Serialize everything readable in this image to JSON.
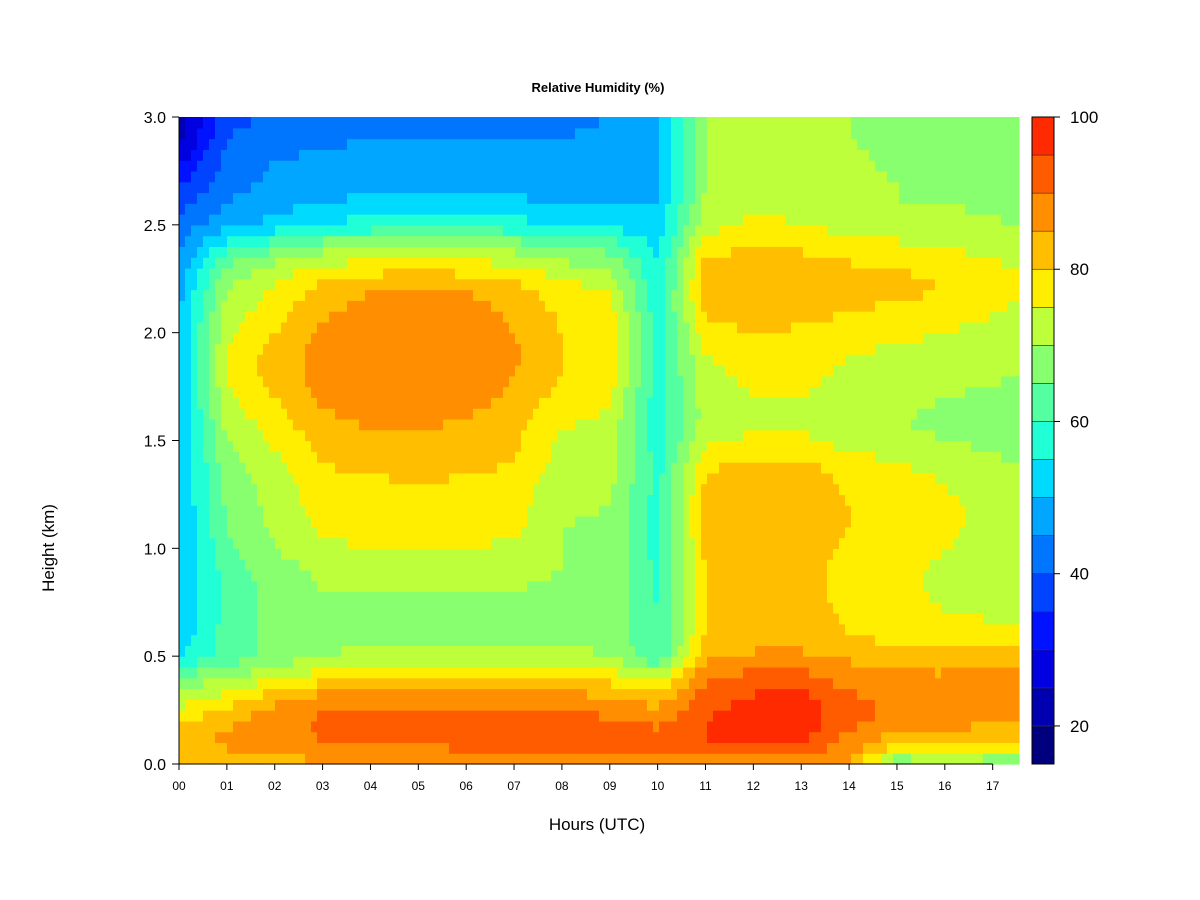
{
  "chart_data": {
    "type": "heatmap",
    "title": "Relative Humidity (%)",
    "xlabel": "Hours (UTC)",
    "ylabel": "Height (km)",
    "xlim": [
      0,
      17.55
    ],
    "ylim": [
      0,
      3.0
    ],
    "x_ticks": [
      "00",
      "01",
      "02",
      "03",
      "04",
      "05",
      "06",
      "07",
      "08",
      "09",
      "10",
      "11",
      "12",
      "13",
      "14",
      "15",
      "16",
      "17"
    ],
    "y_ticks": [
      "0.0",
      "0.5",
      "1.0",
      "1.5",
      "2.0",
      "2.5",
      "3.0"
    ],
    "colorbar": {
      "min": 15,
      "max": 100,
      "step": 5,
      "tick_labels": [
        "20",
        "40",
        "60",
        "80",
        "100"
      ],
      "colors": [
        "#00007f",
        "#0000b0",
        "#0000e1",
        "#0012ff",
        "#0044ff",
        "#0076ff",
        "#00a6ff",
        "#00daff",
        "#20ffd5",
        "#54ffa2",
        "#88ff6e",
        "#bcff3a",
        "#ffee00",
        "#ffbf00",
        "#ff8e00",
        "#ff5c00",
        "#ff2a00",
        "#d90000",
        "#8b0000"
      ]
    },
    "x": [
      0,
      1,
      2,
      3,
      4,
      5,
      6,
      7,
      8,
      9,
      10,
      11,
      12,
      13,
      14,
      15,
      16,
      17.5
    ],
    "y": [
      0.0,
      0.1,
      0.2,
      0.3,
      0.4,
      0.5,
      0.6,
      0.7,
      0.8,
      0.9,
      1.0,
      1.1,
      1.2,
      1.3,
      1.4,
      1.5,
      1.6,
      1.7,
      1.8,
      1.9,
      2.0,
      2.1,
      2.2,
      2.3,
      2.4,
      2.5,
      2.6,
      2.7,
      2.8,
      2.9,
      3.0
    ],
    "values": [
      [
        82,
        82,
        83,
        84,
        85,
        85,
        85,
        85,
        85,
        85,
        85,
        86,
        86,
        86,
        85,
        64,
        72,
        62
      ],
      [
        84,
        86,
        88,
        90,
        91,
        91,
        92,
        92,
        93,
        93,
        92,
        95,
        97,
        95,
        88,
        82,
        80,
        80
      ],
      [
        80,
        84,
        88,
        91,
        91,
        91,
        92,
        92,
        92,
        91,
        89,
        95,
        98,
        98,
        92,
        88,
        87,
        86
      ],
      [
        72,
        78,
        84,
        88,
        88,
        88,
        88,
        88,
        88,
        86,
        83,
        93,
        96,
        97,
        91,
        89,
        88,
        88
      ],
      [
        66,
        70,
        74,
        78,
        80,
        80,
        80,
        80,
        80,
        78,
        74,
        89,
        92,
        92,
        88,
        86,
        86,
        86
      ],
      [
        55,
        62,
        67,
        70,
        71,
        71,
        71,
        71,
        71,
        70,
        60,
        84,
        86,
        86,
        84,
        82,
        82,
        82
      ],
      [
        52,
        62,
        67,
        69,
        69,
        69,
        69,
        69,
        69,
        69,
        60,
        80,
        82,
        82,
        80,
        78,
        77,
        76
      ],
      [
        50,
        62,
        67,
        69,
        69,
        69,
        69,
        69,
        69,
        69,
        60,
        80,
        82,
        82,
        79,
        77,
        75,
        74
      ],
      [
        50,
        62,
        67,
        70,
        70,
        70,
        70,
        70,
        69,
        69,
        59,
        80,
        82,
        82,
        78,
        76,
        74,
        73
      ],
      [
        50,
        62,
        68,
        71,
        72,
        72,
        72,
        71,
        70,
        69,
        59,
        80,
        82,
        82,
        78,
        76,
        74,
        72
      ],
      [
        50,
        64,
        70,
        74,
        75,
        75,
        75,
        74,
        70,
        69,
        58,
        81,
        83,
        83,
        79,
        77,
        75,
        72
      ],
      [
        50,
        65,
        71,
        76,
        77,
        77,
        77,
        76,
        70,
        69,
        58,
        82,
        84,
        84,
        80,
        78,
        76,
        72
      ],
      [
        50,
        66,
        72,
        77,
        78,
        78,
        78,
        77,
        71,
        70,
        58,
        82,
        84,
        84,
        80,
        78,
        76,
        72
      ],
      [
        50,
        66,
        73,
        78,
        79,
        80,
        79,
        77,
        72,
        71,
        58,
        81,
        83,
        83,
        79,
        77,
        75,
        71
      ],
      [
        50,
        68,
        74,
        80,
        82,
        82,
        82,
        80,
        73,
        72,
        58,
        79,
        81,
        81,
        77,
        75,
        73,
        70
      ],
      [
        50,
        70,
        76,
        82,
        84,
        84,
        83,
        81,
        74,
        72,
        57,
        74,
        76,
        76,
        73,
        71,
        70,
        68
      ],
      [
        50,
        72,
        78,
        84,
        86,
        86,
        85,
        82,
        76,
        74,
        57,
        72,
        74,
        74,
        72,
        70,
        69,
        67
      ],
      [
        50,
        74,
        80,
        86,
        88,
        88,
        87,
        84,
        78,
        76,
        57,
        73,
        75,
        75,
        73,
        72,
        70,
        68
      ],
      [
        50,
        76,
        82,
        87,
        89,
        89,
        88,
        85,
        80,
        78,
        57,
        74,
        76,
        76,
        74,
        73,
        72,
        70
      ],
      [
        50,
        76,
        82,
        87,
        90,
        90,
        89,
        86,
        80,
        79,
        57,
        75,
        77,
        77,
        75,
        74,
        73,
        70
      ],
      [
        50,
        74,
        80,
        86,
        88,
        89,
        88,
        85,
        80,
        78,
        57,
        78,
        80,
        79,
        77,
        76,
        75,
        72
      ],
      [
        50,
        72,
        78,
        84,
        87,
        88,
        87,
        84,
        79,
        77,
        57,
        81,
        83,
        82,
        80,
        79,
        78,
        74
      ],
      [
        48,
        70,
        76,
        82,
        85,
        86,
        85,
        82,
        77,
        75,
        56,
        83,
        85,
        84,
        82,
        81,
        80,
        76
      ],
      [
        46,
        66,
        72,
        76,
        78,
        79,
        78,
        76,
        72,
        70,
        55,
        82,
        84,
        83,
        81,
        80,
        79,
        75
      ],
      [
        44,
        58,
        64,
        68,
        69,
        70,
        70,
        68,
        65,
        63,
        54,
        78,
        80,
        79,
        77,
        76,
        75,
        72
      ],
      [
        42,
        48,
        52,
        56,
        57,
        58,
        58,
        57,
        55,
        54,
        52,
        73,
        76,
        75,
        73,
        72,
        71,
        70
      ],
      [
        38,
        45,
        48,
        50,
        51,
        52,
        52,
        51,
        50,
        50,
        50,
        71,
        74,
        74,
        72,
        70,
        70,
        69
      ],
      [
        34,
        43,
        46,
        48,
        49,
        49,
        49,
        48,
        48,
        48,
        49,
        70,
        73,
        73,
        71,
        70,
        69,
        68
      ],
      [
        28,
        42,
        45,
        46,
        47,
        47,
        47,
        46,
        46,
        47,
        49,
        70,
        72,
        72,
        71,
        69,
        69,
        68
      ],
      [
        24,
        40,
        43,
        44,
        45,
        45,
        45,
        45,
        45,
        46,
        48,
        70,
        72,
        72,
        70,
        69,
        69,
        68
      ],
      [
        22,
        38,
        41,
        42,
        43,
        43,
        43,
        43,
        44,
        45,
        48,
        70,
        72,
        72,
        70,
        69,
        68,
        68
      ]
    ]
  }
}
